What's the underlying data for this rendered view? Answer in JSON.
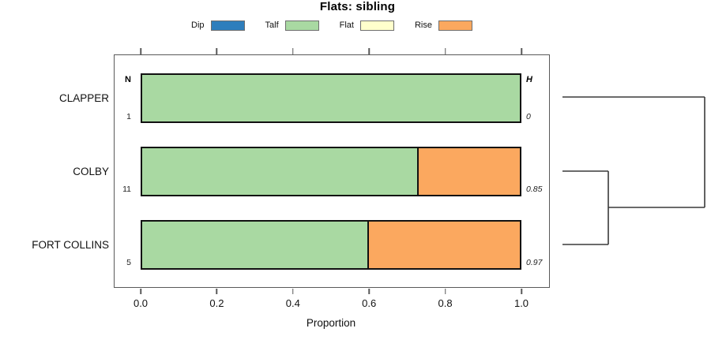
{
  "chart_data": {
    "type": "bar",
    "orientation": "horizontal",
    "stacked": true,
    "title": "Flats: sibling",
    "xlabel": "Proportion",
    "xlim": [
      0,
      1
    ],
    "x_ticks": [
      0.0,
      0.2,
      0.4,
      0.6,
      0.8,
      1.0
    ],
    "x_tick_labels": [
      "0.0",
      "0.2",
      "0.4",
      "0.6",
      "0.8",
      "1.0"
    ],
    "grid": false,
    "legend_position": "top",
    "legend": [
      {
        "label": "Dip",
        "color": "#2E7EBC"
      },
      {
        "label": "Talf",
        "color": "#A9D9A2"
      },
      {
        "label": "Flat",
        "color": "#FFFFCC"
      },
      {
        "label": "Rise",
        "color": "#FBA85F"
      }
    ],
    "columns": {
      "n_header": "N",
      "h_header": "H"
    },
    "rows": [
      {
        "label": "CLAPPER",
        "n": "1",
        "h": "0",
        "segments": [
          {
            "category": "Talf",
            "value": 1.0
          }
        ]
      },
      {
        "label": "COLBY",
        "n": "11",
        "h": "0.85",
        "segments": [
          {
            "category": "Talf",
            "value": 0.73
          },
          {
            "category": "Rise",
            "value": 0.27
          }
        ]
      },
      {
        "label": "FORT COLLINS",
        "n": "5",
        "h": "0.97",
        "segments": [
          {
            "category": "Talf",
            "value": 0.6
          },
          {
            "category": "Rise",
            "value": 0.4
          }
        ]
      }
    ],
    "dendrogram": {
      "position": "right",
      "leaves": [
        "CLAPPER",
        "COLBY",
        "FORT COLLINS"
      ],
      "merges": [
        {
          "clusters": [
            "COLBY",
            "FORT COLLINS"
          ]
        },
        {
          "clusters": [
            "CLAPPER",
            "COLBY+FORT COLLINS"
          ]
        }
      ]
    }
  }
}
